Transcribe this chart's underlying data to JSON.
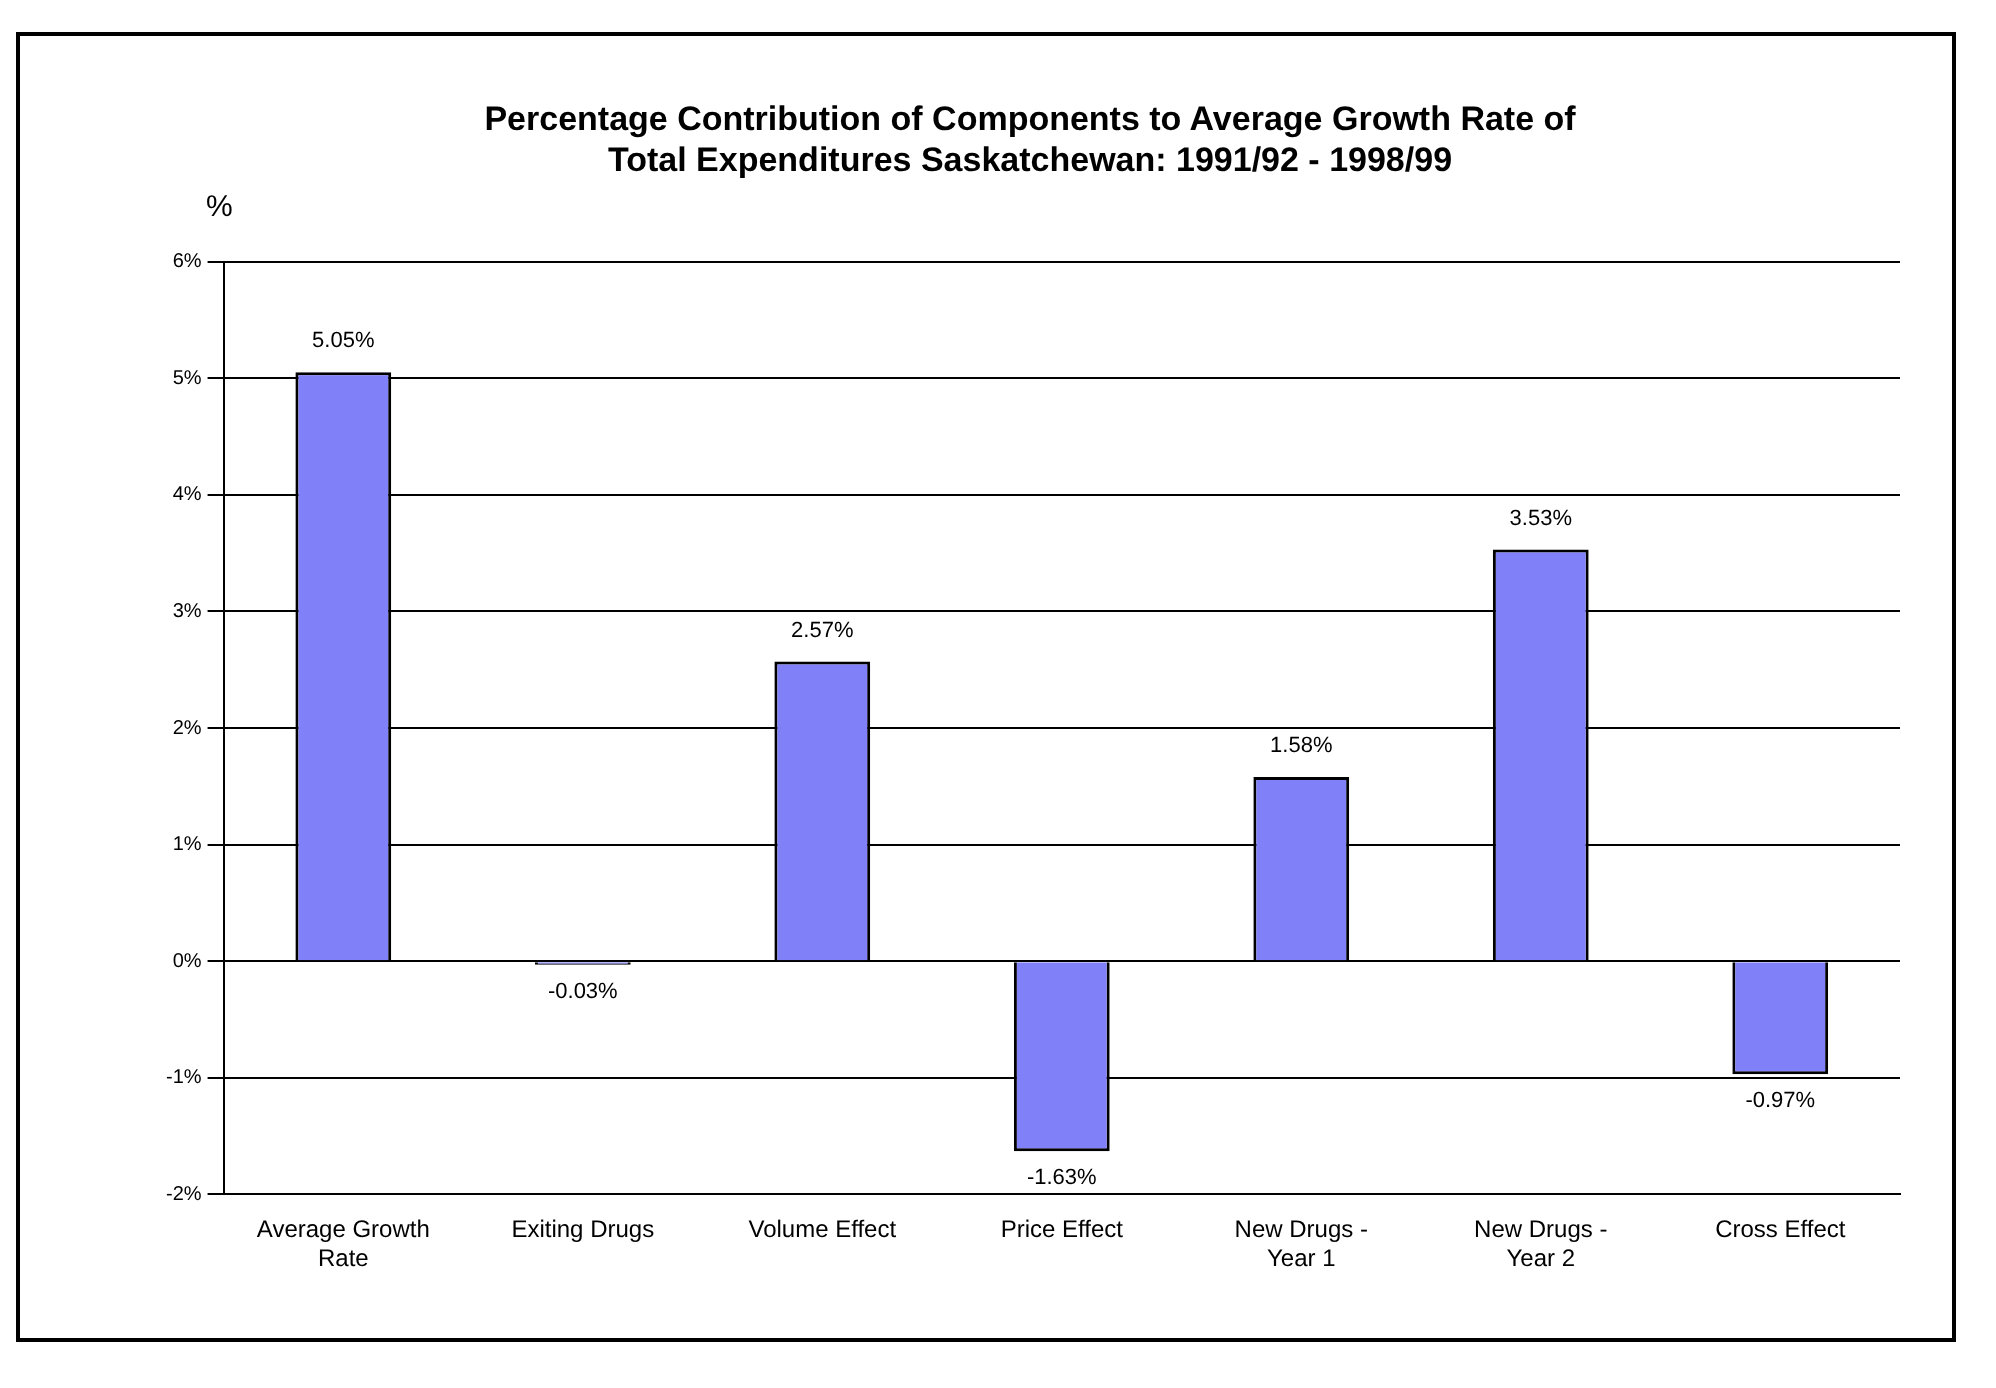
{
  "chart_data": {
    "type": "bar",
    "title": "Percentage Contribution of Components to Average Growth Rate of Total Expenditures Saskatchewan: 1991/92 - 1998/99",
    "ylabel": "%",
    "categories": [
      "Average Growth Rate",
      "Exiting Drugs",
      "Volume Effect",
      "Price Effect",
      "New Drugs - Year 1",
      "New Drugs - Year 2",
      "Cross Effect"
    ],
    "values": [
      5.05,
      -0.03,
      2.57,
      -1.63,
      1.58,
      3.53,
      -0.97
    ],
    "value_labels": [
      "5.05%",
      "-0.03%",
      "2.57%",
      "-1.63%",
      "1.58%",
      "3.53%",
      "-0.97%"
    ],
    "color": "#8080f8",
    "ylim": [
      -2,
      6
    ],
    "yticks": [
      {
        "value": -2,
        "label": "-2%"
      },
      {
        "value": -1,
        "label": "-1%"
      },
      {
        "value": 0,
        "label": "0%"
      },
      {
        "value": 1,
        "label": "1%"
      },
      {
        "value": 2,
        "label": "2%"
      },
      {
        "value": 3,
        "label": "3%"
      },
      {
        "value": 4,
        "label": "4%"
      },
      {
        "value": 5,
        "label": "5%"
      },
      {
        "value": 6,
        "label": "6%"
      }
    ],
    "grid": "y",
    "legend": false
  }
}
